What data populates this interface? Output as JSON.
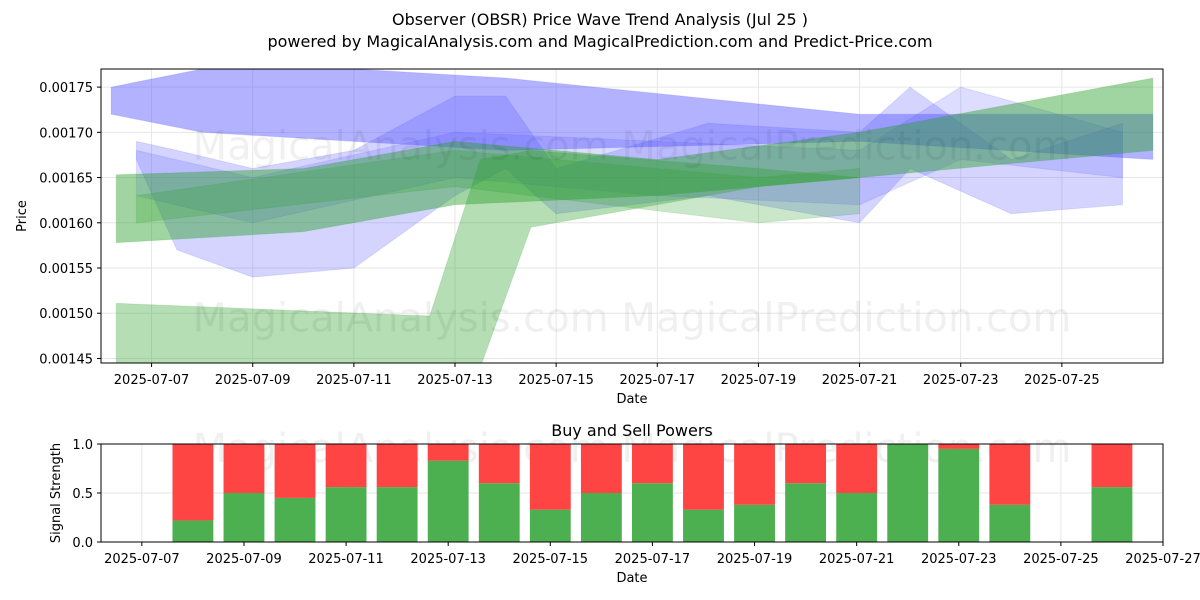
{
  "title": "Observer (OBSR) Price Wave Trend Analysis (Jul 25 )",
  "subtitle": "powered by MagicalAnalysis.com and MagicalPrediction.com and Predict-Price.com",
  "watermarks": [
    "MagicalAnalysis.com",
    "MagicalPrediction.com"
  ],
  "colors": {
    "blue_band": "#5555ff",
    "green_band": "#2ca02c",
    "buy": "#4caf50",
    "sell": "#ff4444",
    "grid": "#e6e6e6"
  },
  "chart_data": [
    {
      "type": "area",
      "xlabel": "Date",
      "ylabel": "Price",
      "xlim": [
        "2025-07-06",
        "2025-07-27"
      ],
      "ylim": [
        0.001445,
        0.00177
      ],
      "x_ticks": [
        "2025-07-07",
        "2025-07-09",
        "2025-07-11",
        "2025-07-13",
        "2025-07-15",
        "2025-07-17",
        "2025-07-19",
        "2025-07-21",
        "2025-07-23",
        "2025-07-25"
      ],
      "y_ticks": [
        "0.00145",
        "0.00150",
        "0.00155",
        "0.00160",
        "0.00165",
        "0.00170",
        "0.00175"
      ],
      "grid": true,
      "bands": [
        {
          "color": "blue",
          "opacity": 0.45,
          "points": [
            [
              "2025-07-06.2",
              0.00175,
              0.00172
            ],
            [
              "2025-07-08",
              0.00177,
              0.0017
            ],
            [
              "2025-07-11",
              0.00177,
              0.00169
            ],
            [
              "2025-07-14",
              0.00176,
              0.00168
            ],
            [
              "2025-07-21",
              0.00172,
              0.00169
            ],
            [
              "2025-07-26.8",
              0.00172,
              0.00167
            ]
          ]
        },
        {
          "color": "blue",
          "opacity": 0.25,
          "points": [
            [
              "2025-07-06.7",
              0.00169,
              0.00167
            ],
            [
              "2025-07-07.5",
              0.00168,
              0.00157
            ],
            [
              "2025-07-09",
              0.00166,
              0.00154
            ],
            [
              "2025-07-11",
              0.00168,
              0.00155
            ],
            [
              "2025-07-13",
              0.00174,
              0.00163
            ],
            [
              "2025-07-14",
              0.00174,
              0.00166
            ],
            [
              "2025-07-15",
              0.00166,
              0.00161
            ],
            [
              "2025-07-18",
              0.00171,
              0.00163
            ],
            [
              "2025-07-21",
              0.0017,
              0.0016
            ],
            [
              "2025-07-22",
              0.00175,
              0.00166
            ],
            [
              "2025-07-24",
              0.00167,
              0.00161
            ],
            [
              "2025-07-26.2",
              0.00171,
              0.00162
            ]
          ]
        },
        {
          "color": "blue",
          "opacity": 0.2,
          "points": [
            [
              "2025-07-06.7",
              0.00168,
              0.00163
            ],
            [
              "2025-07-09",
              0.00165,
              0.0016
            ],
            [
              "2025-07-13",
              0.0017,
              0.00165
            ],
            [
              "2025-07-17",
              0.00169,
              0.00163
            ],
            [
              "2025-07-21",
              0.00168,
              0.00162
            ],
            [
              "2025-07-23",
              0.00175,
              0.00167
            ],
            [
              "2025-07-26.2",
              0.0017,
              0.00165
            ]
          ]
        },
        {
          "color": "green",
          "opacity": 0.45,
          "points": [
            [
              "2025-07-06.3",
              0.001653,
              0.001578
            ],
            [
              "2025-07-10",
              0.00166,
              0.00159
            ],
            [
              "2025-07-13",
              0.00169,
              0.00162
            ],
            [
              "2025-07-17",
              0.00167,
              0.00163
            ],
            [
              "2025-07-21",
              0.0017,
              0.00165
            ],
            [
              "2025-07-26.8",
              0.00176,
              0.00168
            ]
          ]
        },
        {
          "color": "green",
          "opacity": 0.35,
          "points": [
            [
              "2025-07-06.3",
              0.001511,
              0.00144
            ],
            [
              "2025-07-12.5",
              0.001497,
              0.00144
            ],
            [
              "2025-07-13.5",
              0.00167,
              0.00144
            ],
            [
              "2025-07-14.5",
              0.00168,
              0.001595
            ],
            [
              "2025-07-19",
              0.00166,
              0.00164
            ],
            [
              "2025-07-21",
              0.00165,
              0.00165
            ]
          ]
        },
        {
          "color": "green",
          "opacity": 0.25,
          "points": [
            [
              "2025-07-06.7",
              0.00163,
              0.0016
            ],
            [
              "2025-07-13",
              0.00168,
              0.00164
            ],
            [
              "2025-07-19",
              0.00165,
              0.0016
            ],
            [
              "2025-07-21",
              0.00166,
              0.00161
            ]
          ]
        }
      ]
    },
    {
      "type": "bar",
      "title": "Buy and Sell Powers",
      "xlabel": "Date",
      "ylabel": "Signal Strength",
      "xlim": [
        "2025-07-06.2",
        "2025-07-27"
      ],
      "ylim": [
        0,
        1.0
      ],
      "x_ticks": [
        "2025-07-07",
        "2025-07-09",
        "2025-07-11",
        "2025-07-13",
        "2025-07-15",
        "2025-07-17",
        "2025-07-19",
        "2025-07-21",
        "2025-07-23",
        "2025-07-25",
        "2025-07-27"
      ],
      "y_ticks": [
        "0.0",
        "0.5",
        "1.0"
      ],
      "grid": true,
      "categories": [
        "2025-07-08",
        "2025-07-09",
        "2025-07-10",
        "2025-07-11",
        "2025-07-12",
        "2025-07-13",
        "2025-07-14",
        "2025-07-15",
        "2025-07-16",
        "2025-07-17",
        "2025-07-18",
        "2025-07-19",
        "2025-07-20",
        "2025-07-21",
        "2025-07-22",
        "2025-07-23",
        "2025-07-24",
        "2025-07-26"
      ],
      "series": [
        {
          "name": "Buy",
          "values": [
            0.22,
            0.5,
            0.45,
            0.56,
            0.56,
            0.83,
            0.6,
            0.33,
            0.5,
            0.6,
            0.33,
            0.38,
            0.6,
            0.5,
            1.0,
            0.95,
            0.38,
            0.56
          ]
        },
        {
          "name": "Sell",
          "values": [
            0.78,
            0.5,
            0.55,
            0.44,
            0.44,
            0.17,
            0.4,
            0.67,
            0.5,
            0.4,
            0.67,
            0.62,
            0.4,
            0.5,
            0.0,
            0.05,
            0.62,
            0.44
          ]
        }
      ]
    }
  ]
}
